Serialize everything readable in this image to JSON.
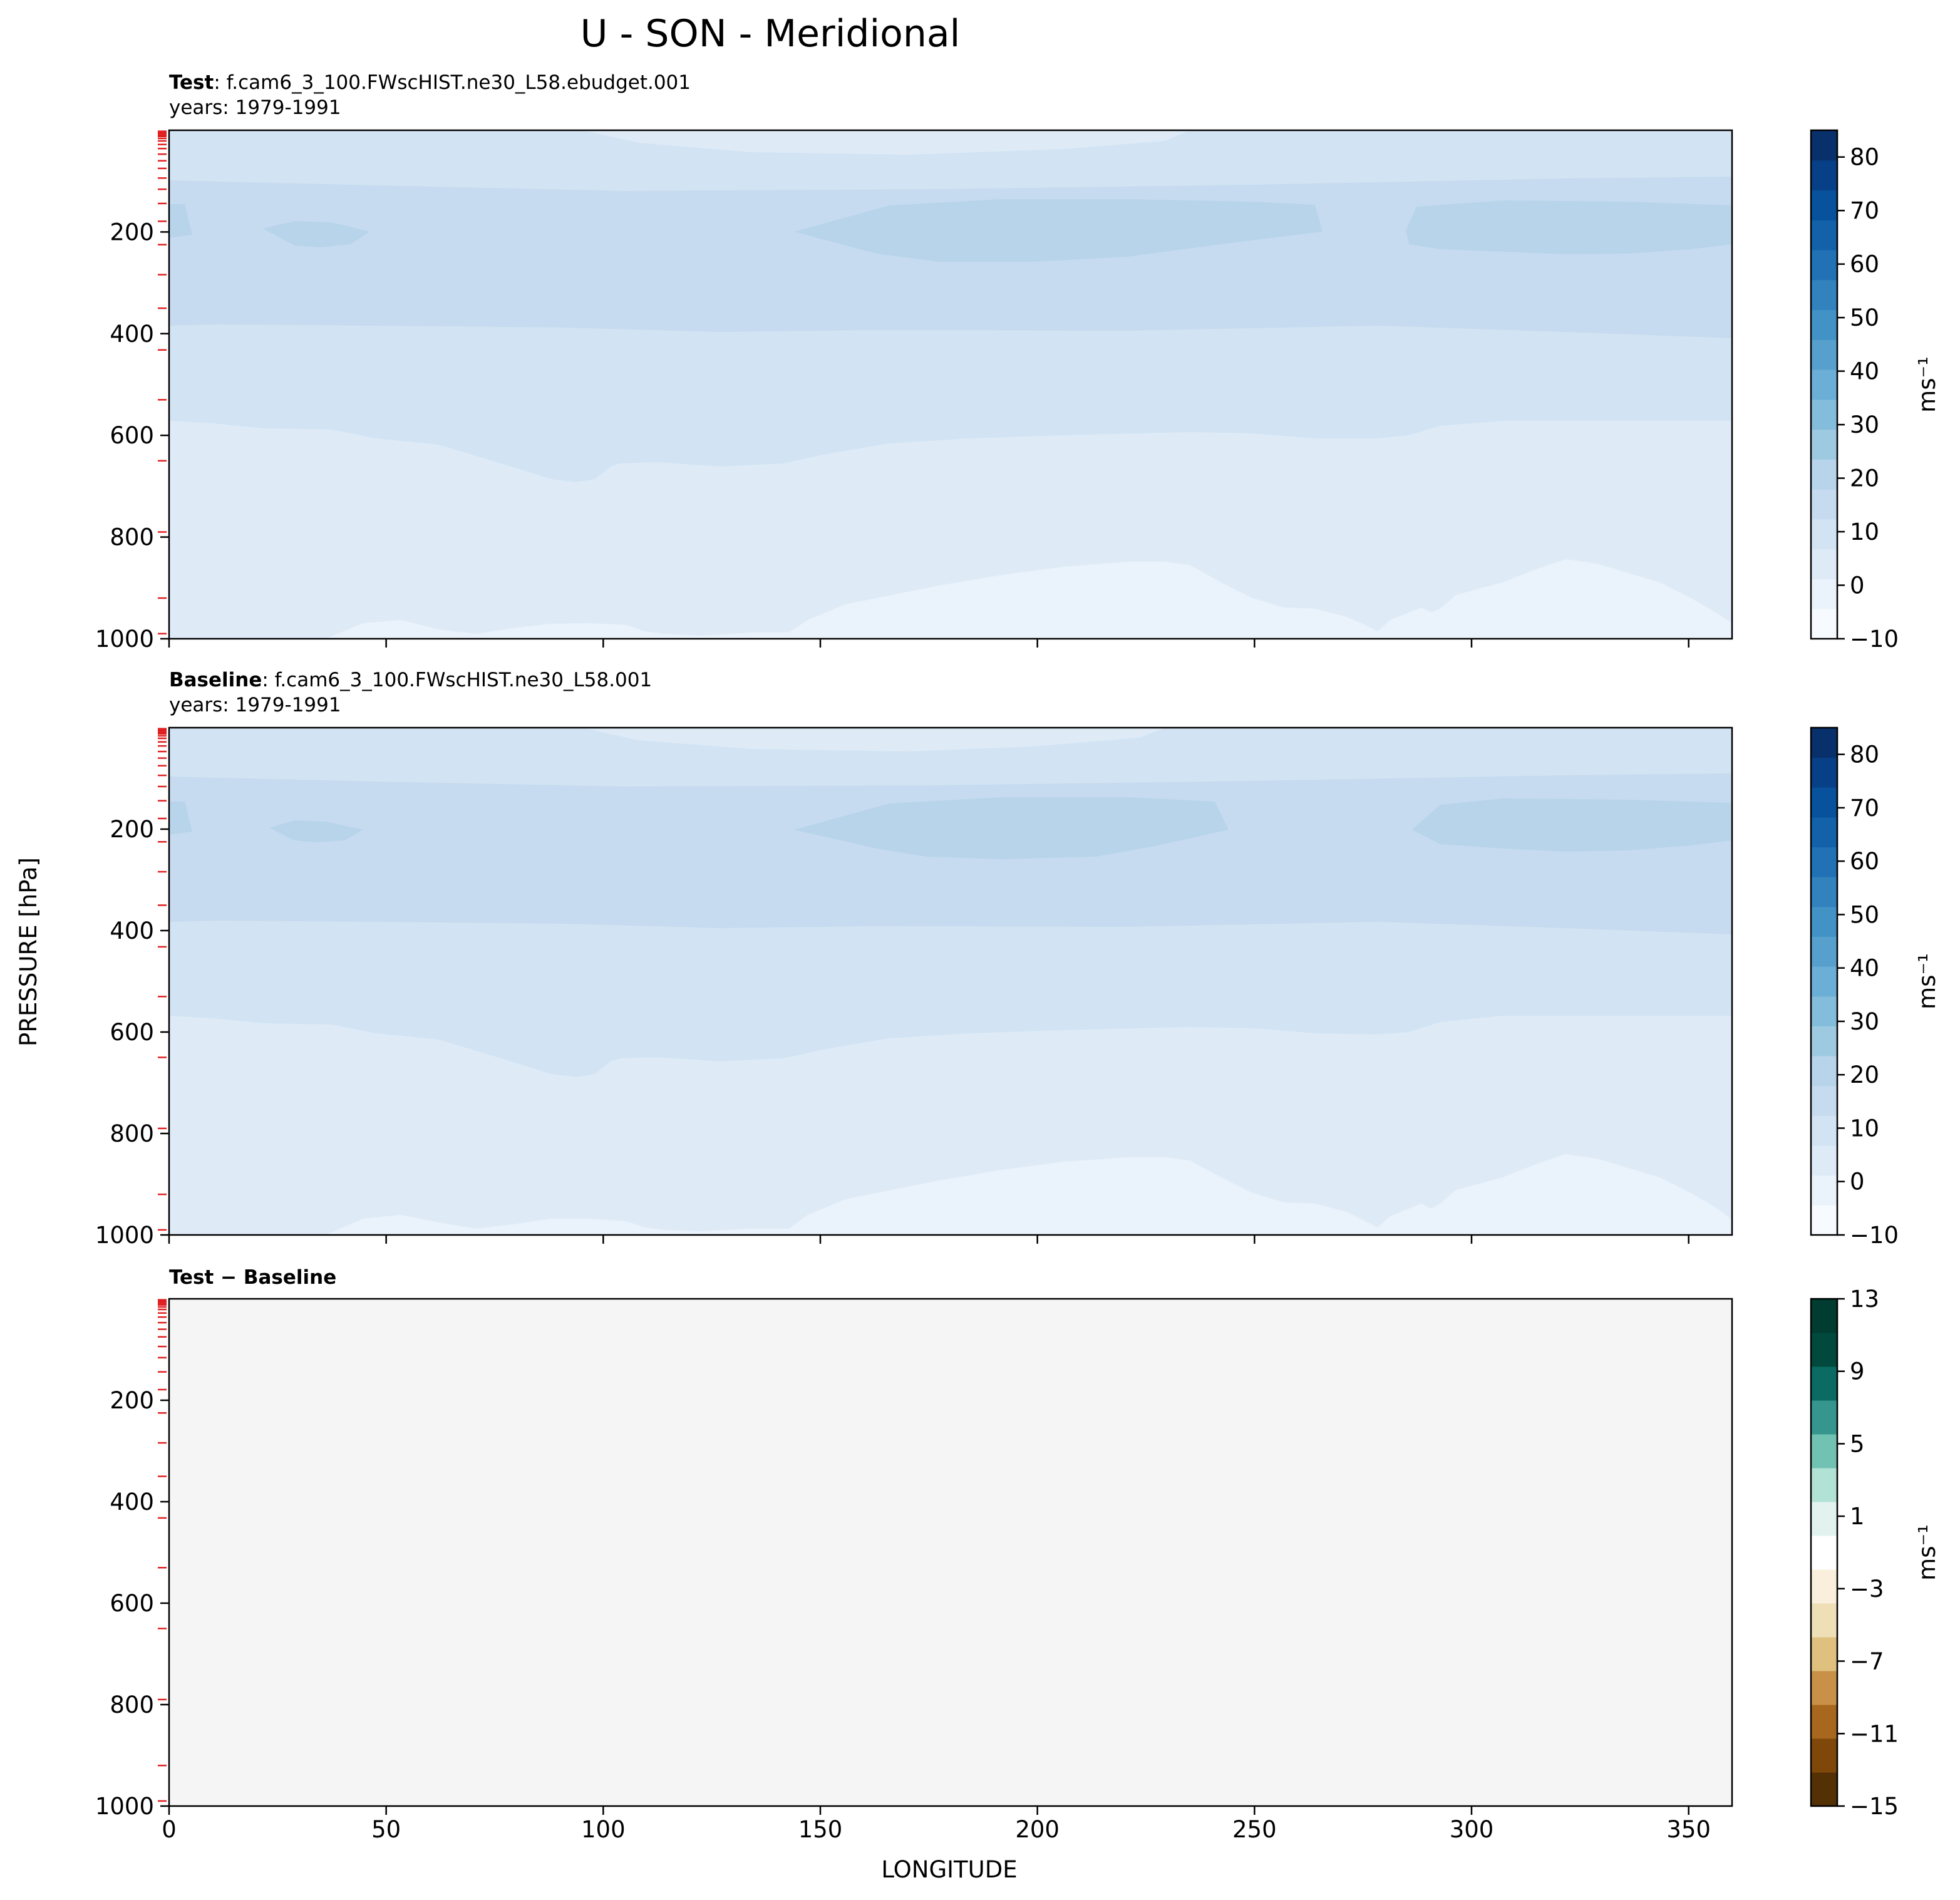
{
  "title": "U - SON - Meridional",
  "chart_data": [
    {
      "type": "contour",
      "label_bold": "Test",
      "label_rest": ": f.cam6_3_100.FWscHIST.ne30_L58.ebudget.001",
      "years": "years: 1979-1991",
      "xlabel": "LONGITUDE",
      "ylabel": "PRESSURE [hPa]",
      "xlim": [
        0,
        360
      ],
      "ylim": [
        1000,
        0
      ],
      "x_ticks": [
        "0",
        "50",
        "100",
        "150",
        "200",
        "250",
        "300",
        "350"
      ],
      "y_ticks": [
        "200",
        "400",
        "600",
        "800",
        "1000"
      ],
      "colorbar_ticks": [
        "−10",
        "0",
        "10",
        "20",
        "30",
        "40",
        "50",
        "60",
        "70",
        "80"
      ],
      "colorbar_unit": "ms⁻¹",
      "colorbar_range": [
        -10,
        85
      ],
      "contour_bands": [
        {
          "range": "-5 to 0",
          "color": "#eaf2fb",
          "region": "near-surface (900-1000 hPa) and thin strip near 10-30 hPa"
        },
        {
          "range": "0 to 5",
          "color": "#deebf7",
          "region": "lower troposphere (600-900 hPa)"
        },
        {
          "range": "5 to 10",
          "color": "#d2e3f3",
          "region": "mid troposphere (380-600 hPa) and upper atmosphere (0-100 hPa)"
        },
        {
          "range": "10 to 15",
          "color": "#c6dbef",
          "region": "upper troposphere (100-380 hPa)"
        },
        {
          "range": "15 to 20",
          "color": "#b8d4ea",
          "region": "jet cores near 200 hPa at ~30E, 150-265E, 285-360E"
        }
      ]
    },
    {
      "type": "contour",
      "label_bold": "Baseline",
      "label_rest": ": f.cam6_3_100.FWscHIST.ne30_L58.001",
      "years": "years: 1979-1991",
      "xlabel": "LONGITUDE",
      "ylabel": "PRESSURE [hPa]",
      "xlim": [
        0,
        360
      ],
      "ylim": [
        1000,
        0
      ],
      "x_ticks": [
        "0",
        "50",
        "100",
        "150",
        "200",
        "250",
        "300",
        "350"
      ],
      "y_ticks": [
        "200",
        "400",
        "600",
        "800",
        "1000"
      ],
      "colorbar_ticks": [
        "−10",
        "0",
        "10",
        "20",
        "30",
        "40",
        "50",
        "60",
        "70",
        "80"
      ],
      "colorbar_unit": "ms⁻¹",
      "colorbar_range": [
        -10,
        85
      ]
    },
    {
      "type": "contour",
      "label_bold": "Test − Baseline",
      "xlabel": "LONGITUDE",
      "ylabel": "PRESSURE [hPa]",
      "xlim": [
        0,
        360
      ],
      "ylim": [
        1000,
        0
      ],
      "x_ticks": [
        "0",
        "50",
        "100",
        "150",
        "200",
        "250",
        "300",
        "350"
      ],
      "y_ticks": [
        "200",
        "400",
        "600",
        "800",
        "1000"
      ],
      "colorbar_ticks": [
        "−15",
        "−11",
        "−7",
        "−3",
        "1",
        "5",
        "9",
        "13"
      ],
      "colorbar_unit": "ms⁻¹",
      "colorbar_range": [
        -15,
        13
      ],
      "field_value": 0,
      "field_color": "#f4f5f4"
    }
  ],
  "colors": {
    "blues_cmap": [
      "#f7fbff",
      "#eaf2fb",
      "#deebf7",
      "#d2e3f3",
      "#c6dbef",
      "#b8d4ea",
      "#9ecae1",
      "#84bcdb",
      "#6baed6",
      "#57a0ce",
      "#4292c6",
      "#3282be",
      "#2171b5",
      "#1361a9",
      "#08519c",
      "#084087",
      "#08306b"
    ],
    "brbg_cmap": [
      "#543005",
      "#7f470a",
      "#a7671e",
      "#c89147",
      "#dfc07e",
      "#eedfb7",
      "#f9efdc",
      "#ffffff",
      "#e2f3ef",
      "#b2e2d5",
      "#71c2b3",
      "#36968d",
      "#0b6b62",
      "#01483d",
      "#003c30"
    ],
    "level_tick_color": "#e02020"
  },
  "pressure_levels": [
    2,
    4,
    6,
    9,
    12,
    16,
    21,
    28,
    36,
    47,
    60,
    75,
    94,
    116,
    144,
    179,
    225,
    284,
    350,
    432,
    530,
    650,
    790,
    920,
    990
  ]
}
